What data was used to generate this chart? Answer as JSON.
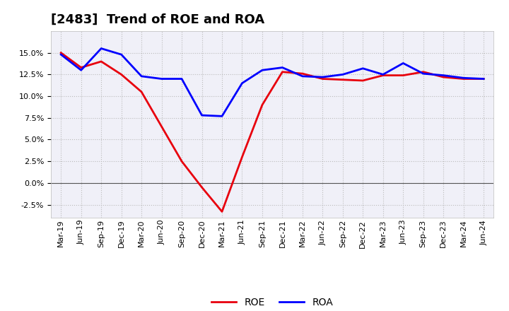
{
  "title": "[2483]  Trend of ROE and ROA",
  "labels": [
    "Mar-19",
    "Jun-19",
    "Sep-19",
    "Dec-19",
    "Mar-20",
    "Jun-20",
    "Sep-20",
    "Dec-20",
    "Mar-21",
    "Jun-21",
    "Sep-21",
    "Dec-21",
    "Mar-22",
    "Jun-22",
    "Sep-22",
    "Dec-22",
    "Mar-23",
    "Jun-23",
    "Sep-23",
    "Dec-23",
    "Mar-24",
    "Jun-24"
  ],
  "ROE": [
    0.15,
    0.133,
    0.14,
    0.125,
    0.105,
    0.065,
    0.025,
    -0.005,
    -0.033,
    0.03,
    0.09,
    0.128,
    0.126,
    0.12,
    0.119,
    0.118,
    0.124,
    0.124,
    0.128,
    0.122,
    0.12,
    0.12
  ],
  "ROA": [
    0.148,
    0.13,
    0.155,
    0.148,
    0.123,
    0.12,
    0.12,
    0.078,
    0.077,
    0.115,
    0.13,
    0.133,
    0.123,
    0.122,
    0.125,
    0.132,
    0.125,
    0.138,
    0.126,
    0.124,
    0.121,
    0.12
  ],
  "roe_color": "#e8000d",
  "roa_color": "#0000ff",
  "background_color": "#ffffff",
  "plot_bg_color": "#f0f0f8",
  "grid_color": "#aaaaaa",
  "ylim": [
    -0.04,
    0.175
  ],
  "yticks": [
    -0.025,
    0.0,
    0.025,
    0.05,
    0.075,
    0.1,
    0.125,
    0.15
  ],
  "line_width": 2.0,
  "title_fontsize": 13,
  "tick_fontsize": 8,
  "legend_fontsize": 10
}
